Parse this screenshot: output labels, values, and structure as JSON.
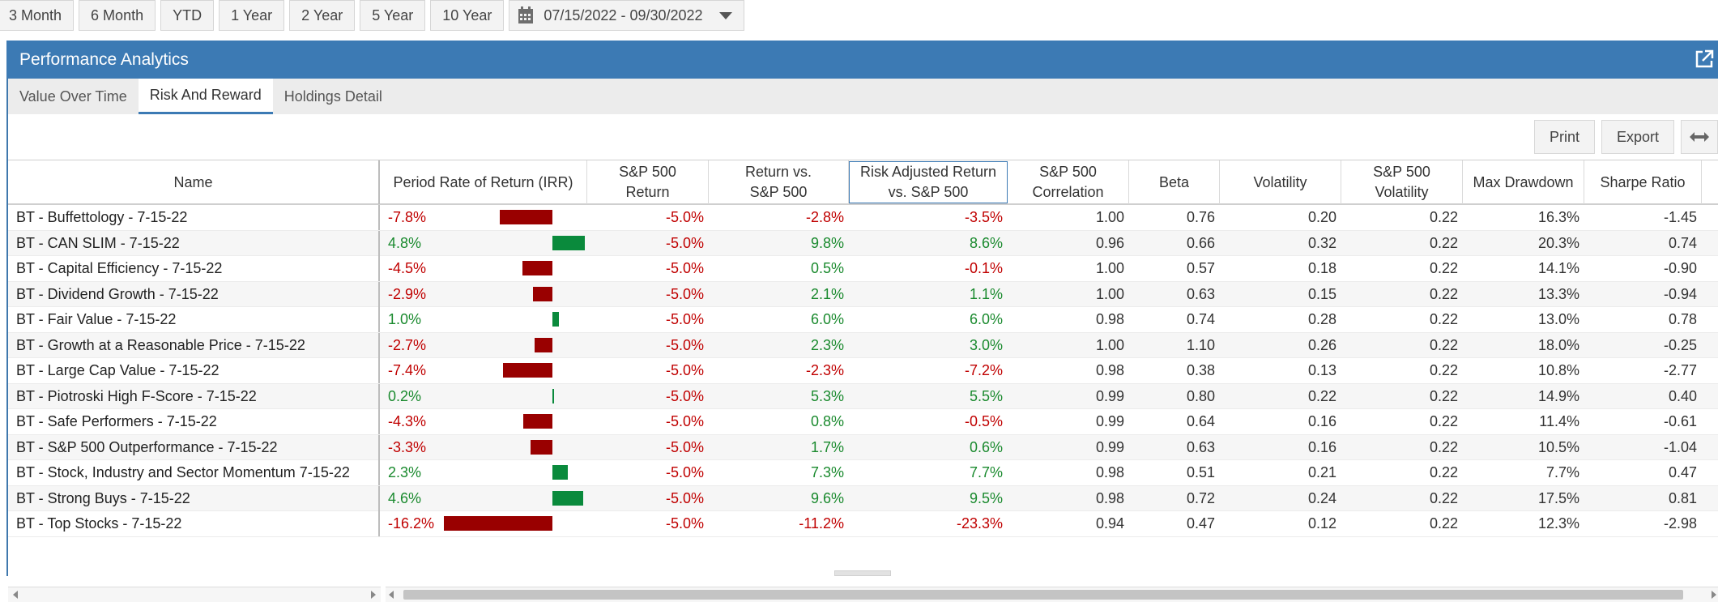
{
  "toolbar": {
    "periods": [
      "3 Month",
      "6 Month",
      "YTD",
      "1 Year",
      "2 Year",
      "5 Year",
      "10 Year"
    ],
    "date_range": "07/15/2022 - 09/30/2022"
  },
  "panel": {
    "title": "Performance Analytics",
    "tabs": [
      "Value Over Time",
      "Risk And Reward",
      "Holdings Detail"
    ],
    "active_tab": "Risk And Reward",
    "actions": {
      "print": "Print",
      "export": "Export"
    }
  },
  "table": {
    "columns": [
      "Name",
      "Period Rate of Return (IRR)",
      "S&P 500 Return",
      "Return vs. S&P 500",
      "Risk Adjusted Return vs. S&P 500",
      "S&P 500 Correlation",
      "Beta",
      "Volatility",
      "S&P 500 Volatility",
      "Max Drawdown",
      "Sharpe Ratio"
    ],
    "column_lines": [
      [
        "Name"
      ],
      [
        "Period Rate of Return (IRR)"
      ],
      [
        "S&P 500",
        "Return"
      ],
      [
        "Return vs.",
        "S&P 500"
      ],
      [
        "Risk Adjusted Return",
        "vs. S&P 500"
      ],
      [
        "S&P 500",
        "Correlation"
      ],
      [
        "Beta"
      ],
      [
        "Volatility"
      ],
      [
        "S&P 500",
        "Volatility"
      ],
      [
        "Max Drawdown"
      ],
      [
        "Sharpe Ratio"
      ]
    ],
    "rows": [
      {
        "name": "BT - Buffettology - 7-15-22",
        "irr": "-7.8%",
        "irr_value": -7.8,
        "sp_return": "-5.0%",
        "vs_sp": "-2.8%",
        "risk_adj": "-3.5%",
        "corr": "1.00",
        "beta": "0.76",
        "vol": "0.20",
        "sp_vol": "0.22",
        "max_dd": "16.3%",
        "sharpe": "-1.45"
      },
      {
        "name": "BT - CAN SLIM - 7-15-22",
        "irr": "4.8%",
        "irr_value": 4.8,
        "sp_return": "-5.0%",
        "vs_sp": "9.8%",
        "risk_adj": "8.6%",
        "corr": "0.96",
        "beta": "0.66",
        "vol": "0.32",
        "sp_vol": "0.22",
        "max_dd": "20.3%",
        "sharpe": "0.74"
      },
      {
        "name": "BT - Capital Efficiency - 7-15-22",
        "irr": "-4.5%",
        "irr_value": -4.5,
        "sp_return": "-5.0%",
        "vs_sp": "0.5%",
        "risk_adj": "-0.1%",
        "corr": "1.00",
        "beta": "0.57",
        "vol": "0.18",
        "sp_vol": "0.22",
        "max_dd": "14.1%",
        "sharpe": "-0.90"
      },
      {
        "name": "BT - Dividend Growth - 7-15-22",
        "irr": "-2.9%",
        "irr_value": -2.9,
        "sp_return": "-5.0%",
        "vs_sp": "2.1%",
        "risk_adj": "1.1%",
        "corr": "1.00",
        "beta": "0.63",
        "vol": "0.15",
        "sp_vol": "0.22",
        "max_dd": "13.3%",
        "sharpe": "-0.94"
      },
      {
        "name": "BT - Fair Value - 7-15-22",
        "irr": "1.0%",
        "irr_value": 1.0,
        "sp_return": "-5.0%",
        "vs_sp": "6.0%",
        "risk_adj": "6.0%",
        "corr": "0.98",
        "beta": "0.74",
        "vol": "0.28",
        "sp_vol": "0.22",
        "max_dd": "13.0%",
        "sharpe": "0.78"
      },
      {
        "name": "BT - Growth at a Reasonable Price - 7-15-22",
        "irr": "-2.7%",
        "irr_value": -2.7,
        "sp_return": "-5.0%",
        "vs_sp": "2.3%",
        "risk_adj": "3.0%",
        "corr": "1.00",
        "beta": "1.10",
        "vol": "0.26",
        "sp_vol": "0.22",
        "max_dd": "18.0%",
        "sharpe": "-0.25"
      },
      {
        "name": "BT - Large Cap Value - 7-15-22",
        "irr": "-7.4%",
        "irr_value": -7.4,
        "sp_return": "-5.0%",
        "vs_sp": "-2.3%",
        "risk_adj": "-7.2%",
        "corr": "0.98",
        "beta": "0.38",
        "vol": "0.13",
        "sp_vol": "0.22",
        "max_dd": "10.8%",
        "sharpe": "-2.77"
      },
      {
        "name": "BT - Piotroski High F-Score - 7-15-22",
        "irr": "0.2%",
        "irr_value": 0.2,
        "sp_return": "-5.0%",
        "vs_sp": "5.3%",
        "risk_adj": "5.5%",
        "corr": "0.99",
        "beta": "0.80",
        "vol": "0.22",
        "sp_vol": "0.22",
        "max_dd": "14.9%",
        "sharpe": "0.40"
      },
      {
        "name": "BT - Safe Performers - 7-15-22",
        "irr": "-4.3%",
        "irr_value": -4.3,
        "sp_return": "-5.0%",
        "vs_sp": "0.8%",
        "risk_adj": "-0.5%",
        "corr": "0.99",
        "beta": "0.64",
        "vol": "0.16",
        "sp_vol": "0.22",
        "max_dd": "11.4%",
        "sharpe": "-0.61"
      },
      {
        "name": "BT - S&P 500 Outperformance - 7-15-22",
        "irr": "-3.3%",
        "irr_value": -3.3,
        "sp_return": "-5.0%",
        "vs_sp": "1.7%",
        "risk_adj": "0.6%",
        "corr": "0.99",
        "beta": "0.63",
        "vol": "0.16",
        "sp_vol": "0.22",
        "max_dd": "10.5%",
        "sharpe": "-1.04"
      },
      {
        "name": "BT - Stock, Industry and Sector Momentum 7-15-22",
        "irr": "2.3%",
        "irr_value": 2.3,
        "sp_return": "-5.0%",
        "vs_sp": "7.3%",
        "risk_adj": "7.7%",
        "corr": "0.98",
        "beta": "0.51",
        "vol": "0.21",
        "sp_vol": "0.22",
        "max_dd": "7.7%",
        "sharpe": "0.47"
      },
      {
        "name": "BT - Strong Buys - 7-15-22",
        "irr": "4.6%",
        "irr_value": 4.6,
        "sp_return": "-5.0%",
        "vs_sp": "9.6%",
        "risk_adj": "9.5%",
        "corr": "0.98",
        "beta": "0.72",
        "vol": "0.24",
        "sp_vol": "0.22",
        "max_dd": "17.5%",
        "sharpe": "0.81"
      },
      {
        "name": "BT - Top Stocks - 7-15-22",
        "irr": "-16.2%",
        "irr_value": -16.2,
        "sp_return": "-5.0%",
        "vs_sp": "-11.2%",
        "risk_adj": "-23.3%",
        "corr": "0.94",
        "beta": "0.47",
        "vol": "0.12",
        "sp_vol": "0.22",
        "max_dd": "12.3%",
        "sharpe": "-2.98"
      }
    ]
  },
  "colors": {
    "header_bg": "#3c7ab4",
    "negative": "#c00000",
    "positive": "#1a8a2e",
    "neg_bar": "#990000",
    "pos_bar": "#0a8a3c"
  }
}
